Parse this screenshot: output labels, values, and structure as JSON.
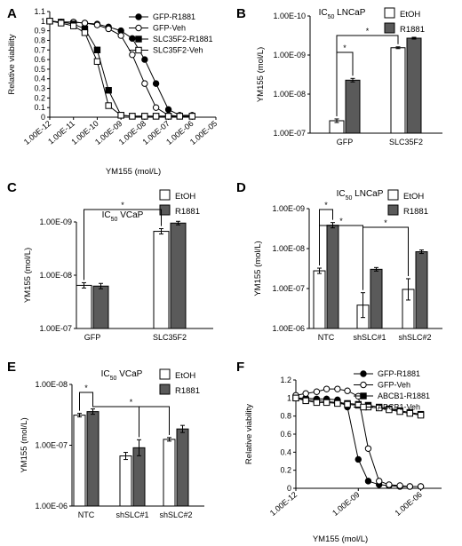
{
  "chart_data": [
    {
      "panel": "A",
      "type": "line",
      "ylabel": "Relative viability",
      "xlabel": "YM155 (mol/L)",
      "ylim": [
        0,
        1.1
      ],
      "xscale": "log",
      "x_ticks": [
        "1.00E-12",
        "1.00E-11",
        "1.00E-10",
        "1.00E-09",
        "1.00E-08",
        "1.00E-07",
        "1.00E-06",
        "1.00E-05"
      ],
      "y_ticks": [
        "0",
        "0.1",
        "0.2",
        "0.3",
        "0.4",
        "0.5",
        "0.6",
        "0.7",
        "0.8",
        "0.9",
        "1",
        "1.1"
      ],
      "x": [
        1e-12,
        3e-12,
        1e-11,
        3e-11,
        1e-10,
        3e-10,
        1e-09,
        3e-09,
        1e-08,
        3e-08,
        1e-07,
        3e-07,
        1e-06
      ],
      "series": [
        {
          "name": "GFP-R1881",
          "marker": "filled-circle",
          "values": [
            1,
            0.99,
            0.99,
            0.98,
            0.97,
            0.94,
            0.9,
            0.82,
            0.6,
            0.35,
            0.08,
            0.02,
            0.02
          ]
        },
        {
          "name": "GFP-Veh",
          "marker": "open-circle",
          "values": [
            1,
            0.99,
            0.99,
            0.98,
            0.96,
            0.92,
            0.85,
            0.65,
            0.35,
            0.1,
            0.02,
            0.01,
            0.01
          ]
        },
        {
          "name": "SLC35F2-R1881",
          "marker": "filled-square",
          "values": [
            1,
            0.99,
            0.97,
            0.92,
            0.7,
            0.28,
            0.02,
            0.01,
            0.01,
            0.01,
            0.01,
            0.01,
            0.01
          ]
        },
        {
          "name": "SLC35F2-Veh",
          "marker": "open-square",
          "values": [
            1,
            0.98,
            0.95,
            0.88,
            0.58,
            0.12,
            0.02,
            0.01,
            0.01,
            0.01,
            0.01,
            0.01,
            0.01
          ]
        }
      ],
      "legend": "top-right"
    },
    {
      "panel": "B",
      "type": "bar",
      "title": "IC50 LNCaP",
      "ylabel": "YM155 (mol/L)",
      "yscale": "log",
      "y_ticks": [
        "1.00E-10",
        "1.00E-09",
        "1.00E-08",
        "1.00E-07"
      ],
      "categories": [
        "GFP",
        "SLC35F2"
      ],
      "series": [
        {
          "name": "EtOH",
          "color": "#ffffff",
          "values": [
            4.8e-08,
            6.5e-10
          ]
        },
        {
          "name": "R1881",
          "color": "#5a5a5a",
          "values": [
            4.4e-09,
            3.7e-10
          ]
        }
      ],
      "significance": [
        "*",
        "*"
      ]
    },
    {
      "panel": "C",
      "type": "bar",
      "title": "IC50 VCaP",
      "ylabel": "YM155 (mol/L)",
      "yscale": "log",
      "y_ticks": [
        "1.00E-09",
        "1.00E-08",
        "1.00E-07"
      ],
      "categories": [
        "GFP",
        "SLC35F2"
      ],
      "series": [
        {
          "name": "EtOH",
          "color": "#ffffff",
          "values": [
            1.55e-08,
            1.5e-09
          ]
        },
        {
          "name": "R1881",
          "color": "#5a5a5a",
          "values": [
            1.6e-08,
            1.05e-09
          ]
        }
      ],
      "significance": [
        "*"
      ]
    },
    {
      "panel": "D",
      "type": "bar",
      "title": "IC50 LNCaP",
      "ylabel": "YM155 (mol/L)",
      "yscale": "log",
      "y_ticks": [
        "1.00E-09",
        "1.00E-08",
        "1.00E-07",
        "1.00E-06"
      ],
      "categories": [
        "NTC",
        "shSLC#1",
        "shSLC#2"
      ],
      "series": [
        {
          "name": "EtOH",
          "color": "#ffffff",
          "values": [
            3.6e-08,
            2.6e-07,
            1.05e-07
          ]
        },
        {
          "name": "R1881",
          "color": "#5a5a5a",
          "values": [
            2.6e-09,
            3.3e-08,
            1.2e-08
          ]
        }
      ],
      "significance": [
        "*",
        "*",
        "*"
      ]
    },
    {
      "panel": "E",
      "type": "bar",
      "title": "IC50 VCaP",
      "ylabel": "YM155 (mol/L)",
      "yscale": "log",
      "y_ticks": [
        "1.00E-08",
        "1.00E-07",
        "1.00E-06"
      ],
      "categories": [
        "NTC",
        "shSLC#1",
        "shSLC#2"
      ],
      "series": [
        {
          "name": "EtOH",
          "color": "#ffffff",
          "values": [
            3.2e-08,
            1.5e-07,
            8e-08
          ]
        },
        {
          "name": "R1881",
          "color": "#5a5a5a",
          "values": [
            2.8e-08,
            1.1e-07,
            5.4e-08
          ]
        }
      ],
      "significance": [
        "*",
        "*"
      ]
    },
    {
      "panel": "F",
      "type": "line",
      "ylabel": "Relative viability",
      "xlabel": "YM155 (mol/L)",
      "ylim": [
        0,
        1.2
      ],
      "xscale": "log",
      "x_ticks": [
        "1.00E-12",
        "1.00E-09",
        "1.00E-06"
      ],
      "y_ticks": [
        "0",
        "0.2",
        "0.4",
        "0.6",
        "0.8",
        "1",
        "1.2"
      ],
      "x": [
        1e-12,
        3e-12,
        1e-11,
        3e-11,
        1e-10,
        3e-10,
        1e-09,
        3e-09,
        1e-08,
        3e-08,
        1e-07,
        3e-07,
        1e-06
      ],
      "series": [
        {
          "name": "GFP-R1881",
          "marker": "filled-circle",
          "values": [
            1.0,
            1.0,
            0.99,
            0.99,
            0.98,
            0.9,
            0.32,
            0.08,
            0.04,
            0.03,
            0.02,
            0.02,
            0.02
          ]
        },
        {
          "name": "GFP-Veh",
          "marker": "open-circle",
          "values": [
            1.03,
            1.05,
            1.07,
            1.1,
            1.1,
            1.08,
            1.02,
            0.44,
            0.08,
            0.04,
            0.03,
            0.02,
            0.02
          ]
        },
        {
          "name": "ABCB1-R1881",
          "marker": "filled-square",
          "values": [
            1.0,
            0.98,
            0.97,
            0.96,
            0.95,
            0.94,
            0.93,
            0.92,
            0.9,
            0.88,
            0.86,
            0.84,
            0.82
          ]
        },
        {
          "name": "ABCB1-Veh",
          "marker": "open-square",
          "values": [
            1.0,
            0.97,
            0.95,
            0.95,
            0.94,
            0.93,
            0.92,
            0.9,
            0.89,
            0.87,
            0.85,
            0.83,
            0.81
          ]
        }
      ],
      "legend": "top-right"
    }
  ]
}
